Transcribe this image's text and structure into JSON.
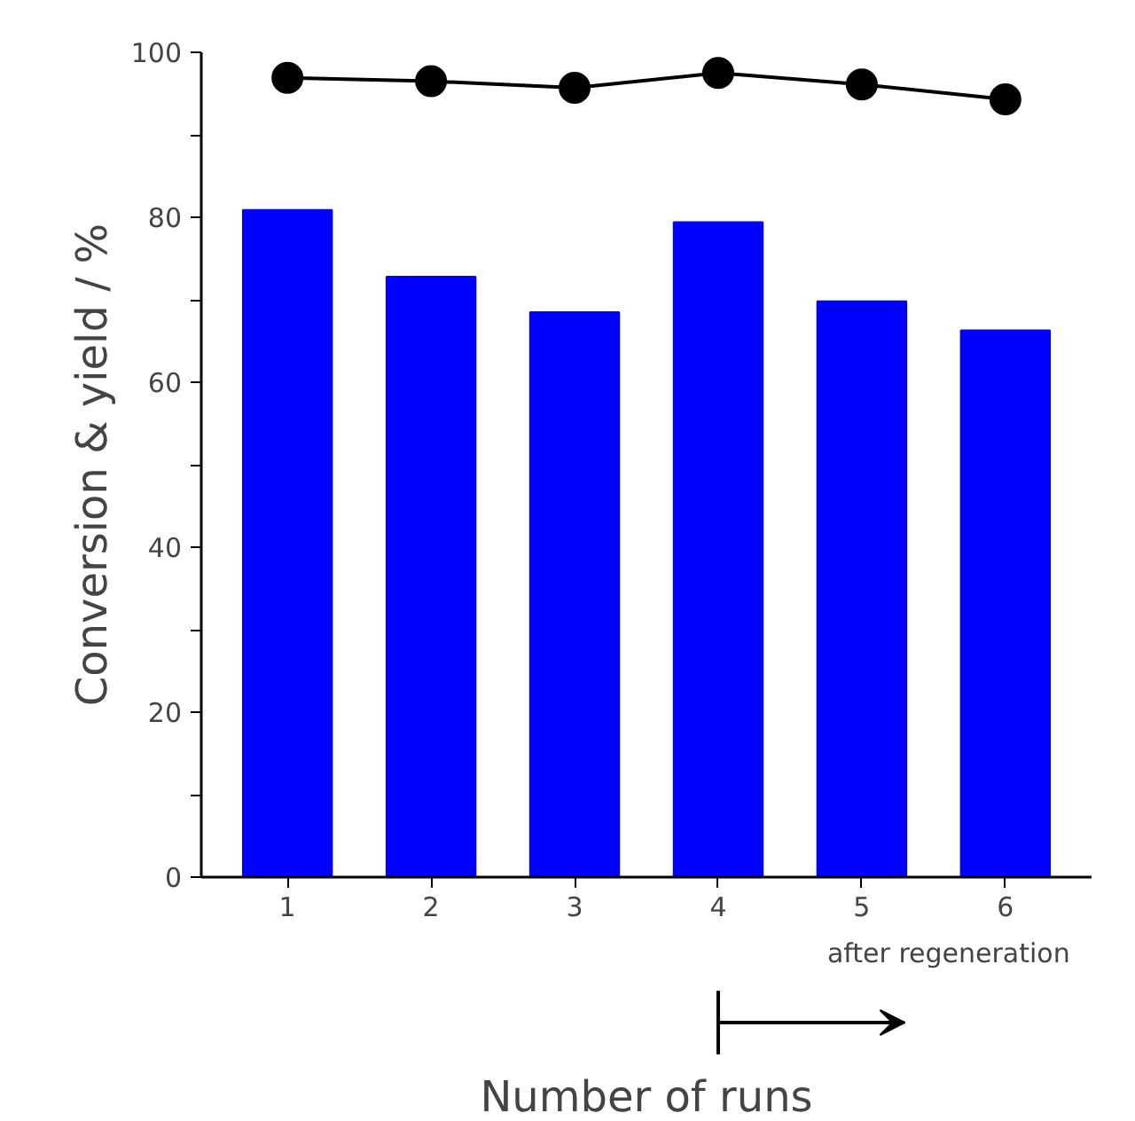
{
  "chart_data": {
    "type": "bar",
    "categories": [
      "1",
      "2",
      "3",
      "4",
      "5",
      "6"
    ],
    "xlabel": "Number of runs",
    "ylabel": "Conversion & yield / %",
    "ylim": [
      0,
      100
    ],
    "yticks": [
      0,
      {
        "value": 10,
        "label": null
      },
      20,
      {
        "value": 30,
        "label": null
      },
      40,
      {
        "value": 50,
        "label": null
      },
      60,
      {
        "value": 70,
        "label": null
      },
      80,
      {
        "value": 90,
        "label": null
      },
      100
    ],
    "grid": false,
    "series": [
      {
        "color": "#0000ff",
        "values": [
          80.9,
          72.8,
          68.5,
          79.4,
          69.8,
          66.3
        ]
      },
      {
        "type": "line",
        "color": "#000000",
        "marker": "circle",
        "values": [
          96.9,
          96.5,
          95.7,
          97.5,
          96.1,
          94.3
        ]
      }
    ],
    "annotations": [
      "after regeneration"
    ]
  }
}
